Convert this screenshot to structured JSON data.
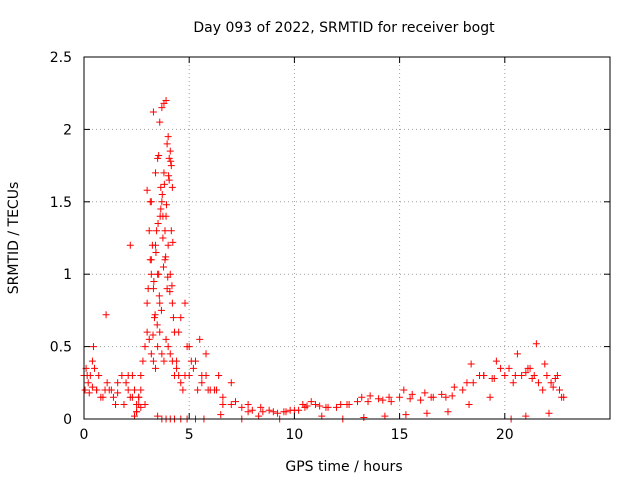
{
  "chart_data": {
    "type": "scatter",
    "title": "Day 093 of 2022, SRMTID for receiver bogt",
    "xlabel": "GPS time / hours",
    "ylabel": "SRMTID / TECUs",
    "xlim": [
      0,
      25
    ],
    "ylim": [
      0,
      2.5
    ],
    "x_ticks": [
      0,
      5,
      10,
      15,
      20
    ],
    "x_tick_labels": [
      "0",
      "5",
      "10",
      "15",
      "20"
    ],
    "y_ticks": [
      0,
      0.5,
      1,
      1.5,
      2,
      2.5
    ],
    "y_tick_labels": [
      "0",
      "0.5",
      "1",
      "1.5",
      "2",
      "2.5"
    ],
    "grid": true,
    "marker": "+",
    "marker_color": "#ff0000",
    "series": [
      {
        "name": "SRMTID",
        "x": [
          0.0,
          0.1,
          0.2,
          0.3,
          0.4,
          0.5,
          0.6,
          0.8,
          1.0,
          1.1,
          1.2,
          1.4,
          1.6,
          1.8,
          2.0,
          2.1,
          2.2,
          2.3,
          2.4,
          2.5,
          2.6,
          2.7,
          2.8,
          2.9,
          3.0,
          3.1,
          3.2,
          3.3,
          3.4,
          3.5,
          3.6,
          3.7,
          3.8,
          3.9,
          4.0,
          4.1,
          4.2,
          4.3,
          4.4,
          4.5,
          4.6,
          4.7,
          4.8,
          5.0,
          5.2,
          5.4,
          5.6,
          5.8,
          6.0,
          6.3,
          6.6,
          7.0,
          7.5,
          8.0,
          8.5,
          9.0,
          9.5,
          10.0,
          10.5,
          10.8,
          11.0,
          11.5,
          12.0,
          12.5,
          13.0,
          13.5,
          14.0,
          14.5,
          15.0,
          15.5,
          16.0,
          16.5,
          17.0,
          17.5,
          18.0,
          18.5,
          19.0,
          19.5,
          20.0,
          20.5,
          21.0,
          21.3,
          21.6,
          22.0,
          22.3,
          22.6,
          22.8,
          0.05,
          0.25,
          0.4,
          0.6,
          0.9,
          1.05,
          1.3,
          1.6,
          1.9,
          2.1,
          2.3,
          2.5,
          2.7,
          2.9,
          3.0,
          3.1,
          3.2,
          3.3,
          3.4,
          3.5,
          3.6,
          3.7,
          3.8,
          3.9,
          4.0,
          4.1,
          4.2,
          4.3,
          4.4,
          4.6,
          4.8,
          5.0,
          5.3,
          5.6,
          5.9,
          6.2,
          6.6,
          7.2,
          7.8,
          8.4,
          9.2,
          9.8,
          10.4,
          11.2,
          12.2,
          13.2,
          14.2,
          15.2,
          16.2,
          17.2,
          18.2,
          18.8,
          19.4,
          19.8,
          20.4,
          20.8,
          21.2,
          21.8,
          22.2,
          22.5,
          0.15,
          0.45,
          0.7,
          1.5,
          2.2,
          2.6,
          3.05,
          3.15,
          3.35,
          3.45,
          3.55,
          3.65,
          3.75,
          3.85,
          3.95,
          4.05,
          4.15,
          4.25,
          4.5,
          4.9,
          5.1,
          5.5,
          5.8,
          6.4,
          7.0,
          7.8,
          8.8,
          9.6,
          10.6,
          11.6,
          12.6,
          13.6,
          14.6,
          15.6,
          16.6,
          17.6,
          18.4,
          19.0,
          19.6,
          20.2,
          20.6,
          21.1,
          21.4,
          21.9,
          22.4,
          2.4,
          2.5,
          2.6,
          2.7,
          3.0,
          3.2,
          3.5,
          3.7,
          3.9,
          4.1,
          4.3,
          4.6,
          4.9,
          5.3,
          5.7,
          6.5,
          7.5,
          8.3,
          9.3,
          10.2,
          11.3,
          12.3,
          13.3,
          14.3,
          15.3,
          16.3,
          17.3,
          18.3,
          19.3,
          20.3,
          21.0,
          21.5,
          22.1,
          22.7,
          3.5,
          3.6,
          3.7,
          3.8,
          3.9,
          4.0,
          4.1,
          4.2,
          3.4,
          3.3,
          3.2,
          4.05,
          3.95,
          3.85,
          3.75,
          3.65,
          3.55,
          3.25,
          3.15,
          4.15,
          3.52,
          3.62,
          3.72,
          3.82,
          3.92,
          4.02,
          4.12,
          3.42,
          3.32,
          4.22,
          3.58,
          3.68,
          3.78,
          3.88,
          3.98,
          4.08,
          3.48,
          3.38,
          3.28,
          4.18
        ],
        "y": [
          0.3,
          0.35,
          0.25,
          0.3,
          0.4,
          0.35,
          0.2,
          0.15,
          0.2,
          0.25,
          0.2,
          0.15,
          0.25,
          0.3,
          0.25,
          0.2,
          0.15,
          0.3,
          0.2,
          0.1,
          0.15,
          0.3,
          0.4,
          0.5,
          0.6,
          0.55,
          0.45,
          0.4,
          0.35,
          0.5,
          0.6,
          0.45,
          0.4,
          0.55,
          0.5,
          0.45,
          0.4,
          0.3,
          0.35,
          0.3,
          0.25,
          0.2,
          0.3,
          0.3,
          0.35,
          0.2,
          0.25,
          0.3,
          0.2,
          0.2,
          0.15,
          0.1,
          0.08,
          0.06,
          0.05,
          0.05,
          0.05,
          0.06,
          0.08,
          0.12,
          0.1,
          0.08,
          0.08,
          0.1,
          0.12,
          0.12,
          0.14,
          0.15,
          0.15,
          0.14,
          0.13,
          0.15,
          0.17,
          0.16,
          0.2,
          0.25,
          0.3,
          0.28,
          0.3,
          0.3,
          0.32,
          0.28,
          0.25,
          0.3,
          0.22,
          0.2,
          0.15,
          0.2,
          0.18,
          0.22,
          0.2,
          0.15,
          0.72,
          0.2,
          0.18,
          0.1,
          0.3,
          0.15,
          0.05,
          0.2,
          0.1,
          0.8,
          1.3,
          1.1,
          0.9,
          1.2,
          1.0,
          0.8,
          1.5,
          1.7,
          1.4,
          1.2,
          1.0,
          0.8,
          0.6,
          0.4,
          0.7,
          0.8,
          0.5,
          0.4,
          0.3,
          0.2,
          0.2,
          0.1,
          0.12,
          0.05,
          0.08,
          0.04,
          0.06,
          0.1,
          0.09,
          0.1,
          0.15,
          0.13,
          0.2,
          0.18,
          0.15,
          0.25,
          0.3,
          0.28,
          0.35,
          0.25,
          0.3,
          0.35,
          0.2,
          0.25,
          0.3,
          0.3,
          0.5,
          0.3,
          0.1,
          1.2,
          0.1,
          0.9,
          1.5,
          0.7,
          1.3,
          1.0,
          1.6,
          1.4,
          1.1,
          0.9,
          1.8,
          1.3,
          0.7,
          0.6,
          0.5,
          0.4,
          0.55,
          0.45,
          0.3,
          0.25,
          0.1,
          0.06,
          0.05,
          0.09,
          0.08,
          0.1,
          0.16,
          0.12,
          0.17,
          0.15,
          0.22,
          0.38,
          0.3,
          0.4,
          0.35,
          0.45,
          0.35,
          0.3,
          0.38,
          0.28,
          0.02,
          0.05,
          0.15,
          0.08,
          1.58,
          1.0,
          0.02,
          0.0,
          0.0,
          0.0,
          0.0,
          0.0,
          0.0,
          0.0,
          0.0,
          0.03,
          0.0,
          0.02,
          0.0,
          0.06,
          0.02,
          0.0,
          0.01,
          0.02,
          0.03,
          0.04,
          0.05,
          0.1,
          0.15,
          0.0,
          0.02,
          0.52,
          0.04,
          0.15,
          1.8,
          2.05,
          2.15,
          2.18,
          2.2,
          1.95,
          1.85,
          1.6,
          1.7,
          2.12,
          1.5,
          1.65,
          1.9,
          1.3,
          1.25,
          1.45,
          1.82,
          1.2,
          1.1,
          1.75,
          1.35,
          1.4,
          1.55,
          1.62,
          1.48,
          1.68,
          1.78,
          1.15,
          0.95,
          1.22,
          0.85,
          0.75,
          1.05,
          1.12,
          0.98,
          0.88,
          0.65,
          0.72,
          0.58,
          0.92
        ]
      }
    ]
  }
}
